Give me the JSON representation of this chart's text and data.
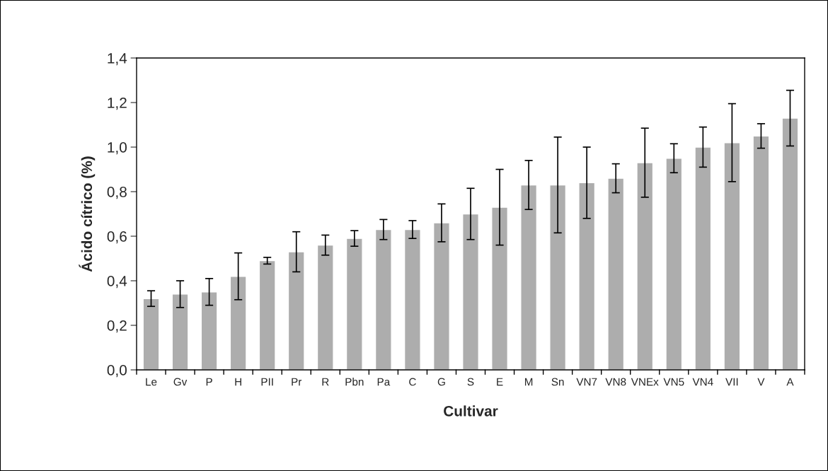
{
  "chart_data": {
    "type": "bar",
    "xlabel": "Cultivar",
    "ylabel": "Ácido cítrico (%)",
    "categories": [
      "Le",
      "Gv",
      "P",
      "H",
      "PII",
      "Pr",
      "R",
      "Pbn",
      "Pa",
      "C",
      "G",
      "S",
      "E",
      "M",
      "Sn",
      "VN7",
      "VN8",
      "VNEx",
      "VN5",
      "VN4",
      "VII",
      "V",
      "A"
    ],
    "values": [
      0.32,
      0.34,
      0.35,
      0.42,
      0.49,
      0.53,
      0.56,
      0.59,
      0.63,
      0.63,
      0.66,
      0.7,
      0.73,
      0.83,
      0.83,
      0.84,
      0.86,
      0.93,
      0.95,
      1.0,
      1.02,
      1.05,
      1.13
    ],
    "errors": [
      0.035,
      0.06,
      0.06,
      0.105,
      0.015,
      0.09,
      0.045,
      0.035,
      0.045,
      0.04,
      0.085,
      0.115,
      0.17,
      0.11,
      0.215,
      0.16,
      0.065,
      0.155,
      0.065,
      0.09,
      0.175,
      0.055,
      0.125
    ],
    "color": "#adadad",
    "ylim": [
      0,
      1.4
    ],
    "yticks": [
      {
        "value": 0,
        "label": "0,0"
      },
      {
        "value": 0.2,
        "label": "0,2"
      },
      {
        "value": 0.4,
        "label": "0,4"
      },
      {
        "value": 0.6,
        "label": "0,6"
      },
      {
        "value": 0.8,
        "label": "0,8"
      },
      {
        "value": 1.0,
        "label": "1,0"
      },
      {
        "value": 1.2,
        "label": "1,2"
      },
      {
        "value": 1.4,
        "label": "1,4"
      }
    ],
    "grid": false
  }
}
